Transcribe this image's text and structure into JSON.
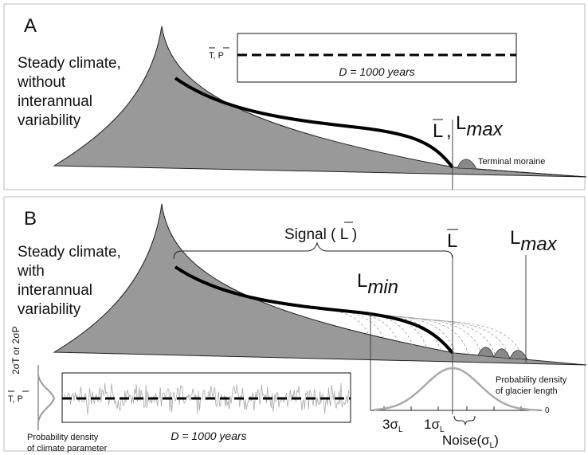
{
  "panels": {
    "a": {
      "label": "A",
      "caption": [
        "Steady climate,",
        "without",
        "interannual",
        "variability"
      ],
      "inset_axis": "T, P",
      "duration": "D = 1000 years",
      "length_mean": "L",
      "length_max": {
        "main": "L",
        "sub": "max"
      },
      "moraine": "Terminal moraine"
    },
    "b": {
      "label": "B",
      "caption": [
        "Steady climate,",
        "with",
        "interannual",
        "variability"
      ],
      "signal": "Signal ( L )",
      "length_mean": "L",
      "length_max": {
        "main": "L",
        "sub": "max"
      },
      "length_min": {
        "main": "L",
        "sub": "min"
      },
      "sigma_axis": "2σT or 2σP",
      "inset_axis": "T, P",
      "duration": "D = 1000 years",
      "climate_density": [
        "Probability density",
        "of climate parameter"
      ],
      "length_density": [
        "Probability density",
        "of glacier length"
      ],
      "three_sigma": {
        "main": "3σ",
        "sub": "L"
      },
      "one_sigma": {
        "main": "1σ",
        "sub": "L"
      },
      "noise": {
        "main": "Noise(σ",
        "sub": "L",
        "end": ")"
      },
      "zero": "0"
    }
  }
}
